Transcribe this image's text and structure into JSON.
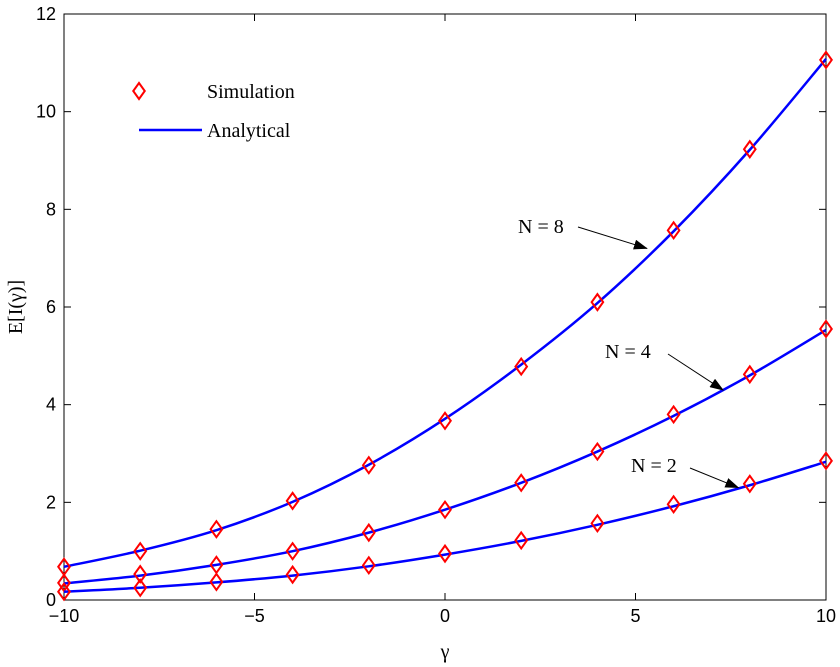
{
  "chart_data": {
    "type": "line",
    "title": "",
    "xlabel": "γ",
    "ylabel": "E[I(γ)]",
    "xlim": [
      -10,
      10
    ],
    "ylim": [
      0,
      12
    ],
    "xticks": [
      -10,
      -5,
      0,
      5,
      10
    ],
    "yticks": [
      0,
      2,
      4,
      6,
      8,
      10,
      12
    ],
    "xtick_labels": [
      "−10",
      "−5",
      "0",
      "5",
      "10"
    ],
    "ytick_labels": [
      "0",
      "2",
      "4",
      "6",
      "8",
      "10",
      "12"
    ],
    "grid": false,
    "legend": {
      "placement": "top-left",
      "entries": [
        {
          "label": "Simulation",
          "marker": "diamond",
          "color": "#ff0000"
        },
        {
          "label": "Analytical",
          "line": "solid",
          "color": "#0000ff"
        }
      ]
    },
    "x": [
      -10,
      -8,
      -6,
      -4,
      -2,
      0,
      2,
      4,
      6,
      8,
      10
    ],
    "series": [
      {
        "name": "N = 8",
        "simulation": [
          0.68,
          1.0,
          1.45,
          2.03,
          2.76,
          3.67,
          4.78,
          6.1,
          7.57,
          9.23,
          11.06
        ],
        "analytical": [
          0.68,
          1.01,
          1.43,
          2.01,
          2.77,
          3.71,
          4.82,
          6.08,
          7.55,
          9.22,
          11.08
        ]
      },
      {
        "name": "N = 4",
        "simulation": [
          0.35,
          0.53,
          0.72,
          1.0,
          1.38,
          1.85,
          2.4,
          3.04,
          3.8,
          4.62,
          5.55
        ],
        "analytical": [
          0.34,
          0.5,
          0.72,
          1.0,
          1.38,
          1.85,
          2.4,
          3.04,
          3.77,
          4.6,
          5.53
        ]
      },
      {
        "name": "N = 2",
        "simulation": [
          0.17,
          0.25,
          0.37,
          0.52,
          0.71,
          0.95,
          1.22,
          1.57,
          1.96,
          2.38,
          2.85
        ],
        "analytical": [
          0.17,
          0.25,
          0.36,
          0.5,
          0.69,
          0.93,
          1.21,
          1.54,
          1.92,
          2.35,
          2.83
        ]
      }
    ],
    "annotations": [
      {
        "text": "N = 8",
        "points_to": {
          "x": 5.3,
          "y": 7.2
        }
      },
      {
        "text": "N = 4",
        "points_to": {
          "x": 7.3,
          "y": 4.3
        }
      },
      {
        "text": "N = 2",
        "points_to": {
          "x": 7.7,
          "y": 2.3
        }
      }
    ],
    "colors": {
      "simulation": "#ff0000",
      "analytical": "#0000ff",
      "axes": "#000000"
    }
  }
}
